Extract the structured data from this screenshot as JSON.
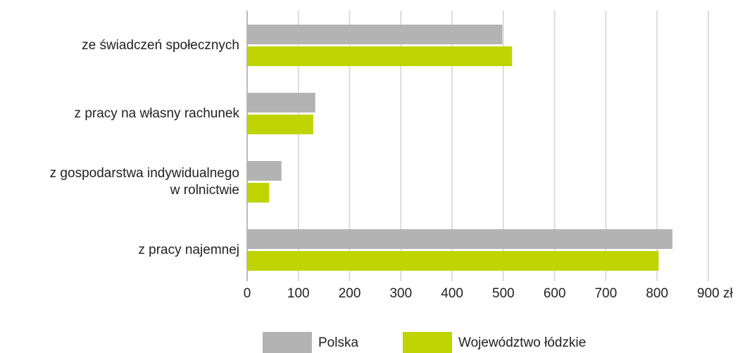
{
  "chart_data": {
    "type": "bar",
    "orientation": "horizontal",
    "categories": [
      "ze świadczeń społecznych",
      "z pracy na własny rachunek",
      "z gospodarstwa indywidualnego\nw rolnictwie",
      "z pracy najemnej"
    ],
    "series": [
      {
        "name": "Polska",
        "color": "#b3b3b3",
        "values": [
          498,
          133,
          67,
          830
        ]
      },
      {
        "name": "Województwo łódzkie",
        "color": "#bfd400",
        "values": [
          517,
          129,
          43,
          803
        ]
      }
    ],
    "xlim": [
      0,
      900
    ],
    "xticks": [
      0,
      100,
      200,
      300,
      400,
      500,
      600,
      700,
      800,
      {
        "value": 900,
        "label": "900 zł"
      }
    ],
    "grid": true,
    "legend": "bottom"
  }
}
